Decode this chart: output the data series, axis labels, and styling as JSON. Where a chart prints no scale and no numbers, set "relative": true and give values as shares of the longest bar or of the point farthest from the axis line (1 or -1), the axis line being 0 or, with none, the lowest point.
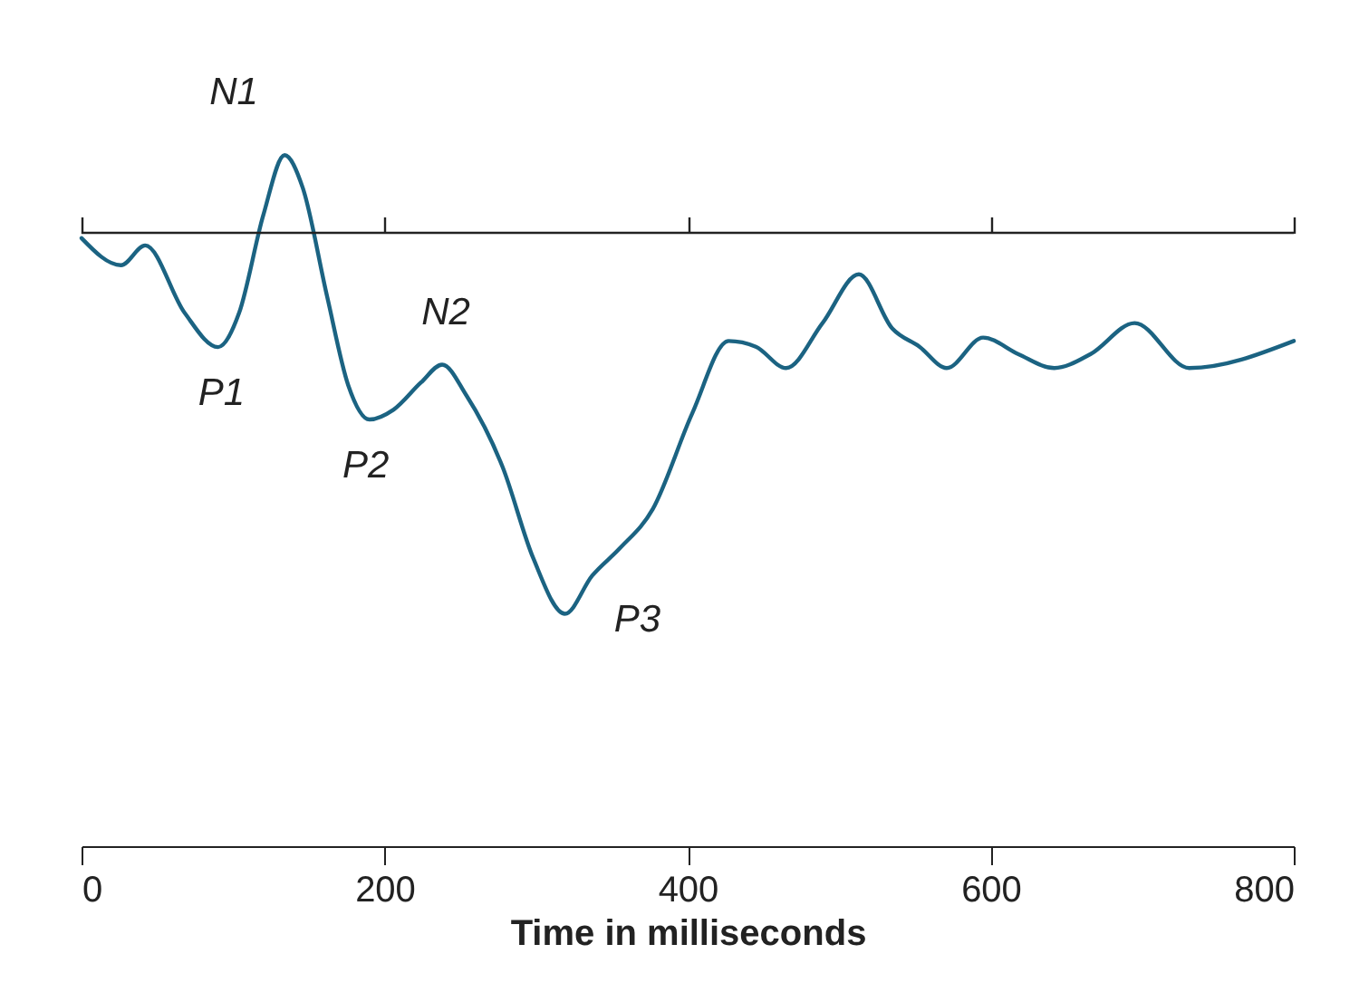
{
  "chart_data": {
    "type": "line",
    "relative": true,
    "xlabel": "Time in milliseconds",
    "x": [
      0,
      26,
      42,
      68,
      90,
      104,
      120,
      134,
      146,
      162,
      176,
      190,
      206,
      224,
      238,
      254,
      278,
      298,
      319,
      337,
      355,
      377,
      403,
      427,
      445,
      465,
      489,
      513,
      535,
      553,
      571,
      595,
      618,
      642,
      666,
      695,
      731,
      800
    ],
    "series": [
      {
        "color": "#1b6382",
        "values": [
          -0.014,
          -0.085,
          -0.033,
          -0.21,
          -0.3,
          -0.21,
          0.047,
          0.204,
          0.118,
          -0.166,
          -0.4,
          -0.49,
          -0.464,
          -0.393,
          -0.346,
          -0.427,
          -0.616,
          -0.853,
          -1,
          -0.9,
          -0.829,
          -0.725,
          -0.474,
          -0.284,
          -0.299,
          -0.355,
          -0.237,
          -0.109,
          -0.251,
          -0.299,
          -0.355,
          -0.275,
          -0.318,
          -0.355,
          -0.318,
          -0.237,
          -0.355,
          -0.284
        ]
      }
    ],
    "xlim": [
      0,
      800
    ],
    "xticks": [
      0,
      200,
      400,
      600,
      800
    ],
    "ref_lines": [
      {
        "axis": "y",
        "value": 0
      }
    ],
    "annotations": [
      {
        "text": "N1",
        "x": 134,
        "y": 0.204
      },
      {
        "text": "P1",
        "x": 90,
        "y": -0.3
      },
      {
        "text": "N2",
        "x": 238,
        "y": -0.346
      },
      {
        "text": "P2",
        "x": 190,
        "y": -0.49
      },
      {
        "text": "P3",
        "x": 319,
        "y": -1
      }
    ],
    "grid": false,
    "line_style": "solid",
    "marker": "none"
  }
}
